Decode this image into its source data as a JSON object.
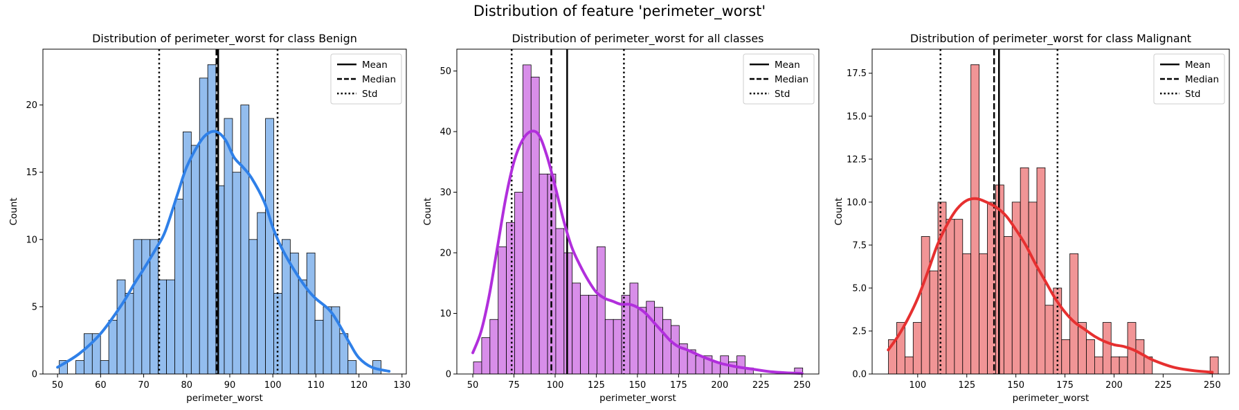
{
  "figure": {
    "suptitle": "Distribution of feature 'perimeter_worst'"
  },
  "legend": {
    "entries": [
      {
        "label": "Mean",
        "style": "solid"
      },
      {
        "label": "Median",
        "style": "dashed"
      },
      {
        "label": "Std",
        "style": "dotted"
      }
    ],
    "position": "upper right"
  },
  "chart_data": [
    {
      "type": "histogram",
      "title": "Distribution of perimeter_worst for class Benign",
      "xlabel": "perimeter_worst",
      "ylabel": "Count",
      "color": "#2f80e8",
      "fill": "#93bdee",
      "bin_start": 50.4,
      "bin_width": 1.916,
      "counts": [
        1,
        0,
        1,
        3,
        3,
        1,
        4,
        7,
        6,
        10,
        10,
        10,
        7,
        7,
        13,
        18,
        17,
        22,
        23,
        14,
        19,
        15,
        20,
        10,
        12,
        19,
        6,
        10,
        9,
        7,
        9,
        4,
        5,
        5,
        3,
        1,
        0,
        0,
        1
      ],
      "kde": {
        "x": [
          50,
          55,
          60,
          65,
          68,
          70,
          73,
          75,
          78,
          80,
          83,
          85,
          87,
          89,
          91,
          93,
          95,
          98,
          100,
          102,
          105,
          108,
          110,
          113,
          115,
          118,
          120,
          123,
          127
        ],
        "y": [
          0.5,
          1.5,
          3,
          5.2,
          6.8,
          7.8,
          9.4,
          10.6,
          13.5,
          15.4,
          17.2,
          17.9,
          18,
          17.4,
          16.1,
          15.4,
          14.6,
          12.8,
          10.9,
          9.4,
          7.7,
          6.3,
          5.6,
          4.8,
          3.9,
          2.2,
          1.2,
          0.5,
          0.2
        ]
      },
      "mean": 87.3,
      "median": 86.9,
      "std_lines": [
        73.6,
        101.1
      ],
      "xlim": [
        46.6,
        131.0
      ],
      "ylim": [
        0,
        24.15
      ],
      "xticks": [
        50,
        60,
        70,
        80,
        90,
        100,
        110,
        120,
        130
      ],
      "yticks": [
        0,
        5,
        10,
        15,
        20
      ],
      "ytick_labels": [
        "0",
        "5",
        "10",
        "15",
        "20"
      ]
    },
    {
      "type": "histogram",
      "title": "Distribution of perimeter_worst for all classes",
      "xlabel": "perimeter_worst",
      "ylabel": "Count",
      "color": "#b12fdc",
      "fill": "#d88ee9",
      "bin_start": 50.4,
      "bin_width": 5.0,
      "counts": [
        2,
        6,
        9,
        21,
        25,
        30,
        51,
        49,
        33,
        33,
        24,
        20,
        15,
        13,
        13,
        21,
        9,
        9,
        13,
        15,
        11,
        12,
        11,
        9,
        8,
        5,
        4,
        3,
        3,
        2,
        3,
        2,
        3,
        1,
        0,
        0,
        0,
        0,
        0,
        1
      ],
      "kde": {
        "x": [
          50,
          55,
          60,
          65,
          70,
          75,
          80,
          85,
          90,
          95,
          100,
          105,
          110,
          115,
          120,
          125,
          130,
          135,
          140,
          145,
          150,
          155,
          160,
          165,
          170,
          175,
          180,
          190,
          200,
          210,
          220,
          230,
          240,
          250
        ],
        "y": [
          3.5,
          7,
          13,
          21,
          29,
          35,
          38.5,
          40,
          39.5,
          36,
          31,
          25.5,
          21,
          18,
          15.5,
          13.5,
          12.5,
          12,
          11.5,
          11.5,
          11,
          10,
          8.5,
          7,
          5.5,
          4.5,
          4,
          2.8,
          1.8,
          1.2,
          0.8,
          0.4,
          0.2,
          0.1
        ]
      },
      "mean": 107.3,
      "median": 97.7,
      "std_lines": [
        73.6,
        141.8
      ],
      "xlim": [
        40.3,
        260.2
      ],
      "ylim": [
        0,
        53.6
      ],
      "xticks": [
        50,
        75,
        100,
        125,
        150,
        175,
        200,
        225,
        250
      ],
      "yticks": [
        0,
        10,
        20,
        30,
        40,
        50
      ],
      "ytick_labels": [
        "0",
        "10",
        "20",
        "30",
        "40",
        "50"
      ]
    },
    {
      "type": "histogram",
      "title": "Distribution of perimeter_worst for class Malignant",
      "xlabel": "perimeter_worst",
      "ylabel": "Count",
      "color": "#e63030",
      "fill": "#f19596",
      "bin_start": 85.1,
      "bin_width": 4.2,
      "counts": [
        2,
        3,
        1,
        3,
        8,
        6,
        10,
        9,
        9,
        7,
        18,
        7,
        10,
        11,
        8,
        10,
        12,
        10,
        12,
        4,
        5,
        2,
        7,
        3,
        2,
        1,
        3,
        1,
        1,
        3,
        2,
        1,
        0,
        0,
        0,
        0,
        0,
        0,
        0,
        1
      ],
      "kde": {
        "x": [
          85,
          90,
          95,
          100,
          105,
          110,
          115,
          120,
          125,
          130,
          135,
          140,
          145,
          150,
          155,
          160,
          165,
          170,
          175,
          180,
          185,
          190,
          195,
          200,
          205,
          210,
          215,
          220,
          230,
          240,
          250
        ],
        "y": [
          1.4,
          2.2,
          3.2,
          4.4,
          5.9,
          7.5,
          8.7,
          9.6,
          10.1,
          10.2,
          10,
          9.7,
          9.2,
          8.4,
          7.5,
          6.4,
          5.4,
          4.4,
          3.6,
          3,
          2.6,
          2.2,
          1.9,
          1.7,
          1.6,
          1.4,
          1.1,
          0.8,
          0.4,
          0.2,
          0.1
        ]
      },
      "mean": 141.4,
      "median": 138.9,
      "std_lines": [
        111.6,
        171.2
      ],
      "xlim": [
        76.8,
        258.7
      ],
      "ylim": [
        0,
        18.9
      ],
      "xticks": [
        100,
        125,
        150,
        175,
        200,
        225,
        250
      ],
      "yticks": [
        0,
        2.5,
        5,
        7.5,
        10,
        12.5,
        15,
        17.5
      ],
      "ytick_labels": [
        "0.0",
        "2.5",
        "5.0",
        "7.5",
        "10.0",
        "12.5",
        "15.0",
        "17.5"
      ]
    }
  ]
}
